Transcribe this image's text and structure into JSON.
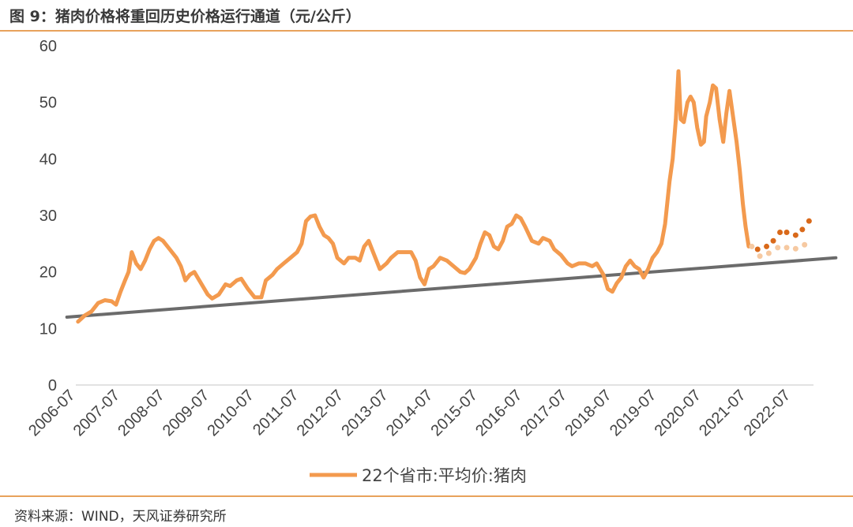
{
  "header": {
    "title": "图 9：猪肉价格将重回历史价格运行通道（元/公斤）"
  },
  "footer": {
    "source": "资料来源：WIND，天风证券研究所"
  },
  "colors": {
    "series": "#f39a4e",
    "trend": "#6b6b6b",
    "forecast_dark": "#d9691a",
    "forecast_light": "#f6c9a1",
    "rule": "#e8a25c"
  },
  "chart_data": {
    "type": "line",
    "title": "",
    "xlabel": "",
    "ylabel": "",
    "ylim": [
      0,
      60
    ],
    "yticks": [
      0,
      10,
      20,
      30,
      40,
      50,
      60
    ],
    "xlim": [
      2006.5,
      2023.0
    ],
    "xticks": [
      {
        "label": "2006-07",
        "x": 2006.5
      },
      {
        "label": "2007-07",
        "x": 2007.5
      },
      {
        "label": "2008-07",
        "x": 2008.5
      },
      {
        "label": "2009-07",
        "x": 2009.5
      },
      {
        "label": "2010-07",
        "x": 2010.5
      },
      {
        "label": "2011-07",
        "x": 2011.5
      },
      {
        "label": "2012-07",
        "x": 2012.5
      },
      {
        "label": "2013-07",
        "x": 2013.5
      },
      {
        "label": "2014-07",
        "x": 2014.5
      },
      {
        "label": "2015-07",
        "x": 2015.5
      },
      {
        "label": "2016-07",
        "x": 2016.5
      },
      {
        "label": "2017-07",
        "x": 2017.5
      },
      {
        "label": "2018-07",
        "x": 2018.5
      },
      {
        "label": "2019-07",
        "x": 2019.5
      },
      {
        "label": "2020-07",
        "x": 2020.5
      },
      {
        "label": "2021-07",
        "x": 2021.5
      },
      {
        "label": "2022-07",
        "x": 2022.5
      }
    ],
    "grid": false,
    "legend": {
      "position": "bottom"
    },
    "series": [
      {
        "name": "22个省市:平均价:猪肉",
        "points": [
          [
            2006.55,
            11.2
          ],
          [
            2006.7,
            12.3
          ],
          [
            2006.85,
            13.0
          ],
          [
            2007.0,
            14.5
          ],
          [
            2007.15,
            15.0
          ],
          [
            2007.3,
            14.8
          ],
          [
            2007.4,
            14.2
          ],
          [
            2007.5,
            16.5
          ],
          [
            2007.6,
            18.5
          ],
          [
            2007.68,
            20.0
          ],
          [
            2007.75,
            23.5
          ],
          [
            2007.85,
            21.5
          ],
          [
            2007.95,
            20.5
          ],
          [
            2008.05,
            22.0
          ],
          [
            2008.15,
            24.0
          ],
          [
            2008.25,
            25.5
          ],
          [
            2008.35,
            26.0
          ],
          [
            2008.45,
            25.5
          ],
          [
            2008.6,
            24.0
          ],
          [
            2008.75,
            22.5
          ],
          [
            2008.85,
            21.0
          ],
          [
            2008.95,
            18.5
          ],
          [
            2009.05,
            19.5
          ],
          [
            2009.15,
            20.0
          ],
          [
            2009.3,
            18.0
          ],
          [
            2009.45,
            16.0
          ],
          [
            2009.55,
            15.3
          ],
          [
            2009.7,
            16.0
          ],
          [
            2009.85,
            17.8
          ],
          [
            2009.95,
            17.5
          ],
          [
            2010.1,
            18.5
          ],
          [
            2010.2,
            18.8
          ],
          [
            2010.35,
            17.0
          ],
          [
            2010.5,
            15.5
          ],
          [
            2010.65,
            15.5
          ],
          [
            2010.75,
            18.5
          ],
          [
            2010.9,
            19.5
          ],
          [
            2011.0,
            20.5
          ],
          [
            2011.15,
            21.5
          ],
          [
            2011.3,
            22.5
          ],
          [
            2011.45,
            23.5
          ],
          [
            2011.55,
            25.0
          ],
          [
            2011.65,
            29.0
          ],
          [
            2011.75,
            29.8
          ],
          [
            2011.85,
            30.0
          ],
          [
            2011.95,
            28.0
          ],
          [
            2012.05,
            26.5
          ],
          [
            2012.15,
            26.0
          ],
          [
            2012.25,
            25.0
          ],
          [
            2012.35,
            22.5
          ],
          [
            2012.5,
            21.5
          ],
          [
            2012.6,
            22.5
          ],
          [
            2012.75,
            22.5
          ],
          [
            2012.85,
            22.0
          ],
          [
            2012.95,
            24.5
          ],
          [
            2013.05,
            25.5
          ],
          [
            2013.15,
            23.5
          ],
          [
            2013.3,
            20.5
          ],
          [
            2013.45,
            21.5
          ],
          [
            2013.55,
            22.5
          ],
          [
            2013.7,
            23.5
          ],
          [
            2013.85,
            23.5
          ],
          [
            2014.0,
            23.5
          ],
          [
            2014.1,
            22.0
          ],
          [
            2014.2,
            19.0
          ],
          [
            2014.3,
            17.8
          ],
          [
            2014.4,
            20.5
          ],
          [
            2014.5,
            21.0
          ],
          [
            2014.65,
            22.5
          ],
          [
            2014.8,
            22.0
          ],
          [
            2014.95,
            21.0
          ],
          [
            2015.1,
            20.0
          ],
          [
            2015.2,
            19.8
          ],
          [
            2015.3,
            20.5
          ],
          [
            2015.45,
            22.5
          ],
          [
            2015.55,
            25.0
          ],
          [
            2015.65,
            27.0
          ],
          [
            2015.75,
            26.5
          ],
          [
            2015.85,
            24.5
          ],
          [
            2015.95,
            24.0
          ],
          [
            2016.05,
            25.5
          ],
          [
            2016.15,
            28.0
          ],
          [
            2016.25,
            28.5
          ],
          [
            2016.35,
            30.0
          ],
          [
            2016.45,
            29.5
          ],
          [
            2016.55,
            28.0
          ],
          [
            2016.7,
            25.5
          ],
          [
            2016.85,
            25.0
          ],
          [
            2016.95,
            26.0
          ],
          [
            2017.1,
            25.5
          ],
          [
            2017.2,
            24.0
          ],
          [
            2017.35,
            23.0
          ],
          [
            2017.5,
            21.5
          ],
          [
            2017.6,
            21.0
          ],
          [
            2017.75,
            21.5
          ],
          [
            2017.9,
            21.5
          ],
          [
            2018.05,
            21.0
          ],
          [
            2018.15,
            21.5
          ],
          [
            2018.3,
            19.5
          ],
          [
            2018.4,
            17.0
          ],
          [
            2018.5,
            16.5
          ],
          [
            2018.6,
            18.0
          ],
          [
            2018.7,
            19.0
          ],
          [
            2018.8,
            21.0
          ],
          [
            2018.9,
            22.0
          ],
          [
            2019.0,
            21.0
          ],
          [
            2019.1,
            20.5
          ],
          [
            2019.2,
            19.0
          ],
          [
            2019.3,
            20.5
          ],
          [
            2019.4,
            22.5
          ],
          [
            2019.5,
            23.5
          ],
          [
            2019.6,
            25.0
          ],
          [
            2019.68,
            28.5
          ],
          [
            2019.78,
            36.0
          ],
          [
            2019.85,
            40.0
          ],
          [
            2019.92,
            47.0
          ],
          [
            2019.98,
            55.5
          ],
          [
            2020.03,
            47.0
          ],
          [
            2020.1,
            46.5
          ],
          [
            2020.18,
            50.0
          ],
          [
            2020.25,
            51.0
          ],
          [
            2020.32,
            50.0
          ],
          [
            2020.4,
            45.5
          ],
          [
            2020.48,
            42.5
          ],
          [
            2020.55,
            43.0
          ],
          [
            2020.6,
            47.5
          ],
          [
            2020.68,
            50.0
          ],
          [
            2020.75,
            53.0
          ],
          [
            2020.82,
            52.5
          ],
          [
            2020.9,
            47.0
          ],
          [
            2020.98,
            43.0
          ],
          [
            2021.05,
            48.0
          ],
          [
            2021.12,
            52.0
          ],
          [
            2021.2,
            47.5
          ],
          [
            2021.28,
            43.0
          ],
          [
            2021.35,
            38.0
          ],
          [
            2021.42,
            32.0
          ],
          [
            2021.48,
            28.0
          ],
          [
            2021.55,
            24.5
          ]
        ]
      }
    ],
    "trend_line": {
      "x": [
        2006.3,
        2023.5
      ],
      "y": [
        12.0,
        22.5
      ]
    },
    "forecast_high": [
      [
        2021.75,
        24.0
      ],
      [
        2021.95,
        24.5
      ],
      [
        2022.1,
        25.5
      ],
      [
        2022.25,
        27.0
      ],
      [
        2022.4,
        27.0
      ],
      [
        2022.6,
        26.5
      ],
      [
        2022.75,
        27.5
      ],
      [
        2022.9,
        29.0
      ]
    ],
    "forecast_low": [
      [
        2021.62,
        24.5
      ],
      [
        2021.8,
        22.8
      ],
      [
        2022.0,
        23.3
      ],
      [
        2022.2,
        24.3
      ],
      [
        2022.4,
        24.3
      ],
      [
        2022.6,
        24.1
      ],
      [
        2022.8,
        24.8
      ]
    ]
  }
}
